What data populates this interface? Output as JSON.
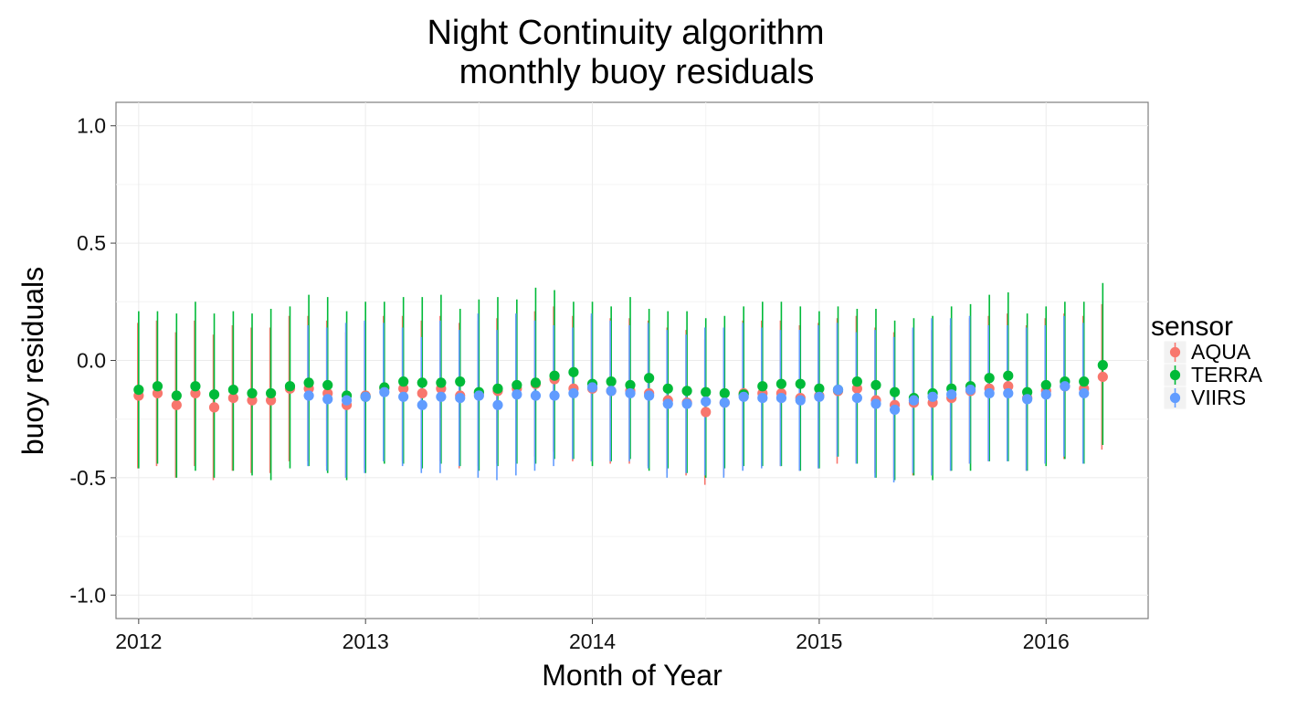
{
  "chart_data": {
    "type": "scatter",
    "title_line1": "Night Continuity algorithm",
    "title_line2": "monthly buoy residuals",
    "xlabel": "Month of Year",
    "ylabel": "buoy residuals",
    "xlim": [
      2011.9,
      2016.45
    ],
    "ylim": [
      -1.1,
      1.1
    ],
    "x_ticks": [
      2012,
      2013,
      2014,
      2015,
      2016
    ],
    "x_tick_labels": [
      "2012",
      "2013",
      "2014",
      "2015",
      "2016"
    ],
    "y_ticks": [
      1.0,
      0.5,
      0.0,
      -0.5,
      -1.0
    ],
    "y_tick_labels": [
      "1.0",
      "0.5",
      "0.0",
      "-0.5",
      "-1.0"
    ],
    "grid": true,
    "legend_placement": "right",
    "legend_title": "sensor",
    "series": [
      {
        "name": "AQUA",
        "color": "#F8766D",
        "x": [
          2012.0,
          2012.083,
          2012.167,
          2012.25,
          2012.333,
          2012.417,
          2012.5,
          2012.583,
          2012.667,
          2012.75,
          2012.833,
          2012.917,
          2013.0,
          2013.083,
          2013.167,
          2013.25,
          2013.333,
          2013.417,
          2013.5,
          2013.583,
          2013.667,
          2013.75,
          2013.833,
          2013.917,
          2014.0,
          2014.083,
          2014.167,
          2014.25,
          2014.333,
          2014.417,
          2014.5,
          2014.583,
          2014.667,
          2014.75,
          2014.833,
          2014.917,
          2015.0,
          2015.083,
          2015.167,
          2015.25,
          2015.333,
          2015.417,
          2015.5,
          2015.583,
          2015.667,
          2015.75,
          2015.833,
          2015.917,
          2016.0,
          2016.083,
          2016.167,
          2016.25
        ],
        "mean": [
          -0.15,
          -0.14,
          -0.19,
          -0.14,
          -0.2,
          -0.16,
          -0.17,
          -0.17,
          -0.12,
          -0.12,
          -0.14,
          -0.19,
          -0.15,
          -0.12,
          -0.12,
          -0.14,
          -0.12,
          -0.15,
          -0.14,
          -0.13,
          -0.12,
          -0.1,
          -0.08,
          -0.12,
          -0.12,
          -0.13,
          -0.13,
          -0.14,
          -0.17,
          -0.18,
          -0.22,
          -0.18,
          -0.14,
          -0.14,
          -0.14,
          -0.16,
          -0.15,
          -0.13,
          -0.12,
          -0.17,
          -0.19,
          -0.18,
          -0.18,
          -0.16,
          -0.13,
          -0.12,
          -0.11,
          -0.16,
          -0.13,
          -0.11,
          -0.12,
          -0.07
        ],
        "low": [
          -0.46,
          -0.45,
          -0.5,
          -0.45,
          -0.51,
          -0.47,
          -0.48,
          -0.48,
          -0.43,
          -0.43,
          -0.45,
          -0.5,
          -0.46,
          -0.43,
          -0.43,
          -0.45,
          -0.43,
          -0.46,
          -0.45,
          -0.44,
          -0.43,
          -0.41,
          -0.39,
          -0.43,
          -0.43,
          -0.44,
          -0.44,
          -0.45,
          -0.48,
          -0.49,
          -0.53,
          -0.49,
          -0.45,
          -0.45,
          -0.45,
          -0.47,
          -0.46,
          -0.44,
          -0.43,
          -0.48,
          -0.5,
          -0.49,
          -0.49,
          -0.47,
          -0.44,
          -0.43,
          -0.42,
          -0.47,
          -0.44,
          -0.42,
          -0.43,
          -0.38
        ],
        "high": [
          0.16,
          0.17,
          0.12,
          0.17,
          0.11,
          0.15,
          0.14,
          0.14,
          0.19,
          0.19,
          0.17,
          0.12,
          0.16,
          0.19,
          0.19,
          0.17,
          0.19,
          0.16,
          0.17,
          0.18,
          0.19,
          0.21,
          0.23,
          0.19,
          0.19,
          0.18,
          0.18,
          0.17,
          0.14,
          0.13,
          0.09,
          0.13,
          0.17,
          0.17,
          0.17,
          0.15,
          0.16,
          0.18,
          0.19,
          0.14,
          0.12,
          0.13,
          0.13,
          0.15,
          0.18,
          0.19,
          0.2,
          0.15,
          0.18,
          0.2,
          0.19,
          0.24
        ]
      },
      {
        "name": "TERRA",
        "color": "#00BA38",
        "x": [
          2012.0,
          2012.083,
          2012.167,
          2012.25,
          2012.333,
          2012.417,
          2012.5,
          2012.583,
          2012.667,
          2012.75,
          2012.833,
          2012.917,
          2013.0,
          2013.083,
          2013.167,
          2013.25,
          2013.333,
          2013.417,
          2013.5,
          2013.583,
          2013.667,
          2013.75,
          2013.833,
          2013.917,
          2014.0,
          2014.083,
          2014.167,
          2014.25,
          2014.333,
          2014.417,
          2014.5,
          2014.583,
          2014.667,
          2014.75,
          2014.833,
          2014.917,
          2015.0,
          2015.083,
          2015.167,
          2015.25,
          2015.333,
          2015.417,
          2015.5,
          2015.583,
          2015.667,
          2015.75,
          2015.833,
          2015.917,
          2016.0,
          2016.083,
          2016.167,
          2016.25
        ],
        "mean": [
          -0.125,
          -0.11,
          -0.15,
          -0.11,
          -0.145,
          -0.125,
          -0.14,
          -0.14,
          -0.11,
          -0.095,
          -0.105,
          -0.15,
          -0.155,
          -0.115,
          -0.09,
          -0.095,
          -0.095,
          -0.09,
          -0.135,
          -0.12,
          -0.105,
          -0.095,
          -0.065,
          -0.05,
          -0.1,
          -0.09,
          -0.105,
          -0.075,
          -0.12,
          -0.13,
          -0.135,
          -0.14,
          -0.145,
          -0.11,
          -0.1,
          -0.1,
          -0.12,
          -0.125,
          -0.09,
          -0.105,
          -0.135,
          -0.16,
          -0.14,
          -0.12,
          -0.11,
          -0.075,
          -0.065,
          -0.135,
          -0.105,
          -0.09,
          -0.09,
          -0.02
        ],
        "low": [
          -0.46,
          -0.44,
          -0.5,
          -0.47,
          -0.5,
          -0.47,
          -0.49,
          -0.51,
          -0.46,
          -0.45,
          -0.48,
          -0.51,
          -0.48,
          -0.44,
          -0.44,
          -0.46,
          -0.44,
          -0.45,
          -0.47,
          -0.45,
          -0.44,
          -0.44,
          -0.42,
          -0.42,
          -0.45,
          -0.43,
          -0.42,
          -0.47,
          -0.46,
          -0.48,
          -0.5,
          -0.46,
          -0.45,
          -0.45,
          -0.45,
          -0.47,
          -0.46,
          -0.41,
          -0.44,
          -0.5,
          -0.51,
          -0.49,
          -0.51,
          -0.47,
          -0.47,
          -0.43,
          -0.43,
          -0.47,
          -0.45,
          -0.42,
          -0.44,
          -0.36
        ],
        "high": [
          0.21,
          0.21,
          0.2,
          0.25,
          0.2,
          0.21,
          0.2,
          0.22,
          0.23,
          0.28,
          0.27,
          0.21,
          0.25,
          0.25,
          0.27,
          0.27,
          0.28,
          0.22,
          0.26,
          0.27,
          0.26,
          0.31,
          0.3,
          0.25,
          0.25,
          0.23,
          0.27,
          0.22,
          0.21,
          0.21,
          0.18,
          0.19,
          0.23,
          0.25,
          0.25,
          0.23,
          0.21,
          0.23,
          0.22,
          0.22,
          0.17,
          0.18,
          0.19,
          0.23,
          0.24,
          0.28,
          0.29,
          0.2,
          0.23,
          0.25,
          0.25,
          0.33
        ]
      },
      {
        "name": "VIIRS",
        "color": "#619CFF",
        "x": [
          2012.75,
          2012.833,
          2012.917,
          2013.0,
          2013.083,
          2013.167,
          2013.25,
          2013.333,
          2013.417,
          2013.5,
          2013.583,
          2013.667,
          2013.75,
          2013.833,
          2013.917,
          2014.0,
          2014.083,
          2014.167,
          2014.25,
          2014.333,
          2014.417,
          2014.5,
          2014.583,
          2014.667,
          2014.75,
          2014.833,
          2014.917,
          2015.0,
          2015.083,
          2015.167,
          2015.25,
          2015.333,
          2015.417,
          2015.5,
          2015.583,
          2015.667,
          2015.75,
          2015.833,
          2015.917,
          2016.0,
          2016.083,
          2016.167
        ],
        "mean": [
          -0.15,
          -0.165,
          -0.17,
          -0.155,
          -0.135,
          -0.155,
          -0.19,
          -0.155,
          -0.16,
          -0.15,
          -0.19,
          -0.145,
          -0.15,
          -0.15,
          -0.14,
          -0.115,
          -0.13,
          -0.14,
          -0.15,
          -0.185,
          -0.185,
          -0.175,
          -0.18,
          -0.155,
          -0.16,
          -0.16,
          -0.17,
          -0.155,
          -0.125,
          -0.16,
          -0.185,
          -0.21,
          -0.17,
          -0.155,
          -0.145,
          -0.125,
          -0.14,
          -0.14,
          -0.165,
          -0.145,
          -0.11,
          -0.14
        ],
        "low": [
          -0.45,
          -0.47,
          -0.5,
          -0.48,
          -0.43,
          -0.45,
          -0.48,
          -0.48,
          -0.45,
          -0.5,
          -0.51,
          -0.49,
          -0.47,
          -0.45,
          -0.42,
          -0.43,
          -0.43,
          -0.43,
          -0.46,
          -0.5,
          -0.48,
          -0.49,
          -0.5,
          -0.47,
          -0.46,
          -0.45,
          -0.47,
          -0.46,
          -0.41,
          -0.44,
          -0.5,
          -0.52,
          -0.48,
          -0.49,
          -0.47,
          -0.44,
          -0.43,
          -0.43,
          -0.47,
          -0.44,
          -0.41,
          -0.44
        ],
        "high": [
          0.15,
          0.14,
          0.16,
          0.17,
          0.16,
          0.14,
          0.1,
          0.17,
          0.13,
          0.2,
          0.13,
          0.2,
          0.17,
          0.15,
          0.14,
          0.2,
          0.17,
          0.15,
          0.16,
          0.13,
          0.11,
          0.14,
          0.14,
          0.16,
          0.14,
          0.13,
          0.13,
          0.15,
          0.16,
          0.12,
          0.13,
          0.1,
          0.14,
          0.18,
          0.18,
          0.19,
          0.15,
          0.15,
          0.14,
          0.15,
          0.19,
          0.16
        ]
      }
    ]
  }
}
